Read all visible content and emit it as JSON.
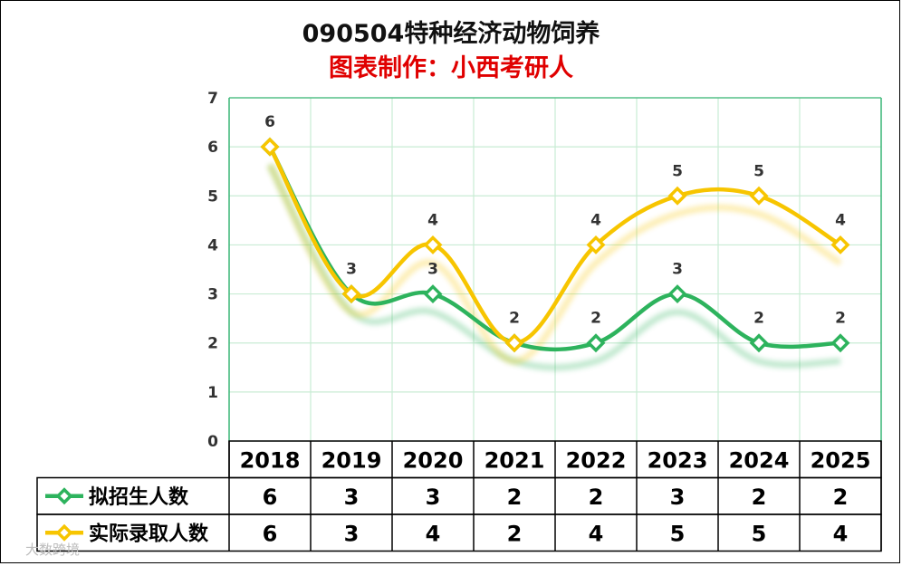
{
  "title": "090504特种经济动物饲养",
  "subtitle": "图表制作：小西考研人",
  "watermark": "大数跨境",
  "colors": {
    "series1": "#2db35d",
    "series2": "#f7c500",
    "grid": "#c9ecd4",
    "axis": "#3cb878",
    "subtitle": "#e00000"
  },
  "chart_data": {
    "type": "line",
    "categories": [
      "2018",
      "2019",
      "2020",
      "2021",
      "2022",
      "2023",
      "2024",
      "2025"
    ],
    "ylim": [
      0,
      7
    ],
    "yticks": [
      "0",
      "1",
      "2",
      "3",
      "4",
      "5",
      "6",
      "7"
    ],
    "grid": true,
    "legend": "data-table",
    "series": [
      {
        "name": "拟招生人数",
        "values": [
          6,
          3,
          3,
          2,
          2,
          3,
          2,
          2
        ],
        "color": "#2db35d",
        "marker": "diamond"
      },
      {
        "name": "实际录取人数",
        "values": [
          6,
          3,
          4,
          2,
          4,
          5,
          5,
          4
        ],
        "color": "#f7c500",
        "marker": "diamond"
      }
    ]
  }
}
